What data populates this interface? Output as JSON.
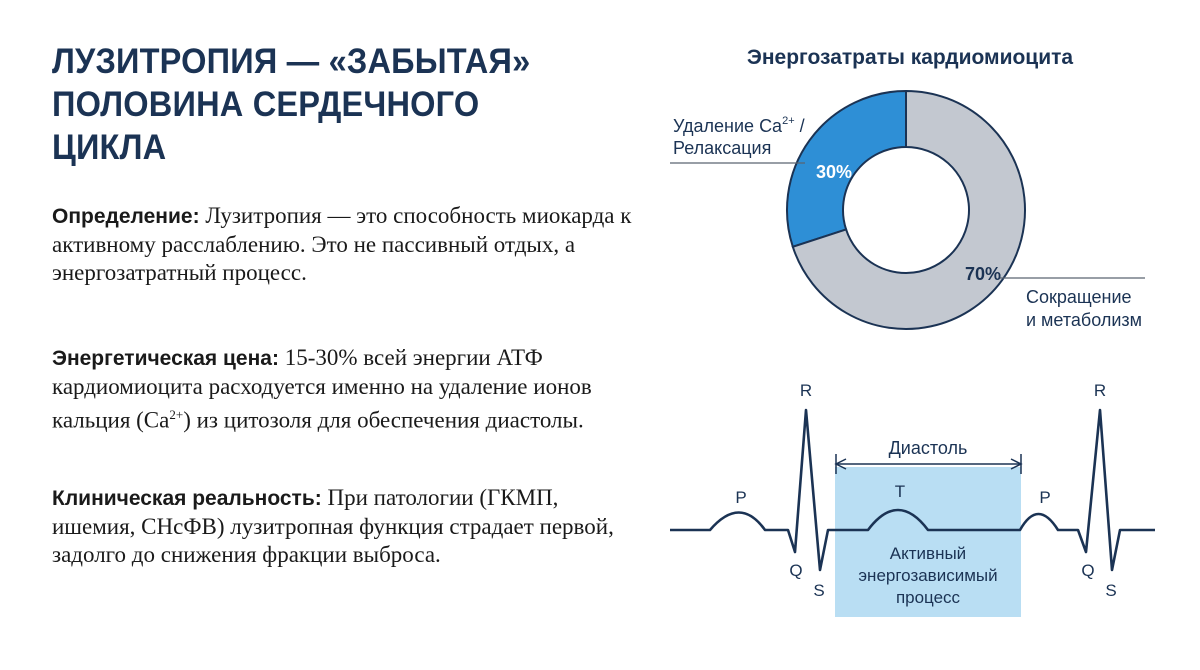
{
  "title_lines": [
    "ЛУЗИТРОПИЯ — «ЗАБЫТАЯ»",
    "ПОЛОВИНА СЕРДЕЧНОГО",
    "ЦИКЛА"
  ],
  "paragraphs": [
    {
      "label": "Определение",
      "text": "Лузитропия — это способность миокарда к активному расслаблению. Это не пассивный отдых, а энергозатратный процесс."
    },
    {
      "label": "Энергетическая цена",
      "text_before": "15-30% всей энергии АТФ кардиомиоцита расходуется именно на удаление ионов кальция (Ca",
      "superscript": "2+",
      "text_after": ") из цитозоля для обеспечения диастолы."
    },
    {
      "label": "Клиническая реальность",
      "text": "При патологии (ГКМП, ишемия, СНсФВ) лузитропная функция страдает первой, задолго до снижения фракции выброса."
    }
  ],
  "chart_data": {
    "type": "pie",
    "title": "Энергозатраты кардиомиоцита",
    "slices": [
      {
        "label_line1": "Удаление Ca",
        "label_sup": "2+",
        "label_line1_end": " /",
        "label_line2": "Релаксация",
        "value": 30,
        "value_label": "30%",
        "color": "#2e8fd6"
      },
      {
        "label_line1": "Сокращение",
        "label_line2": "и метаболизм",
        "value": 70,
        "value_label": "70%",
        "color": "#c3c8d0"
      }
    ]
  },
  "ecg": {
    "labels": {
      "P": "P",
      "Q": "Q",
      "R": "R",
      "S": "S",
      "T": "T"
    },
    "diastole_label": "Диастоль",
    "box_lines": [
      "Активный",
      "энергозависимый",
      "процесс"
    ],
    "box_color": "#b9def3",
    "line_color": "#1b3354"
  }
}
